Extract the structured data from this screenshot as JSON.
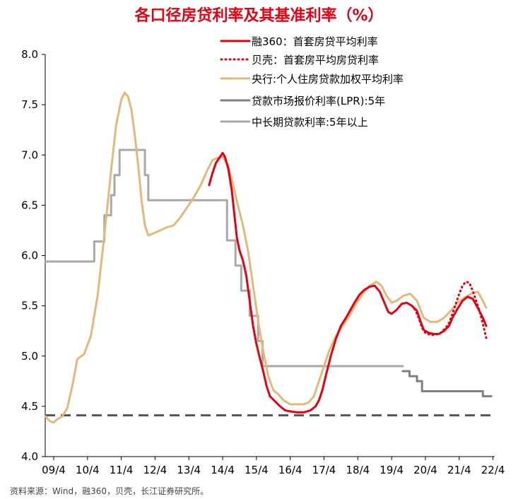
{
  "chart_data": {
    "type": "line",
    "title": "各口径房贷利率及其基准利率（%）",
    "source": "资料来源：Wind，融360，贝壳，长江证券研究所。",
    "ylim": [
      4.0,
      8.0
    ],
    "y_ticks": [
      "4.0",
      "4.5",
      "5.0",
      "5.5",
      "6.0",
      "6.5",
      "7.0",
      "7.5",
      "8.0"
    ],
    "x_range": [
      2009.25,
      2022.25
    ],
    "x_ticks": [
      {
        "label": "09/4",
        "x": 2009.25
      },
      {
        "label": "10/4",
        "x": 2010.25
      },
      {
        "label": "11/4",
        "x": 2011.25
      },
      {
        "label": "12/4",
        "x": 2012.25
      },
      {
        "label": "13/4",
        "x": 2013.25
      },
      {
        "label": "14/4",
        "x": 2014.25
      },
      {
        "label": "15/4",
        "x": 2015.25
      },
      {
        "label": "16/4",
        "x": 2016.25
      },
      {
        "label": "17/4",
        "x": 2017.25
      },
      {
        "label": "18/4",
        "x": 2018.25
      },
      {
        "label": "19/4",
        "x": 2019.25
      },
      {
        "label": "20/4",
        "x": 2020.25
      },
      {
        "label": "21/4",
        "x": 2021.25
      },
      {
        "label": "22/4",
        "x": 2022.25
      }
    ],
    "reference_line": {
      "value": 4.41,
      "color": "#555555",
      "style": "dashed"
    },
    "series": [
      {
        "name": "融360：首套房贷平均利率",
        "color": "#e60012",
        "style": "solid",
        "points": [
          [
            2013.85,
            6.7
          ],
          [
            2013.95,
            6.82
          ],
          [
            2014.05,
            6.92
          ],
          [
            2014.15,
            6.97
          ],
          [
            2014.25,
            7.02
          ],
          [
            2014.32,
            6.98
          ],
          [
            2014.42,
            6.86
          ],
          [
            2014.52,
            6.65
          ],
          [
            2014.6,
            6.4
          ],
          [
            2014.67,
            6.18
          ],
          [
            2014.75,
            6.05
          ],
          [
            2014.85,
            5.95
          ],
          [
            2014.95,
            5.8
          ],
          [
            2015.05,
            5.55
          ],
          [
            2015.15,
            5.3
          ],
          [
            2015.25,
            5.12
          ],
          [
            2015.35,
            4.98
          ],
          [
            2015.45,
            4.85
          ],
          [
            2015.55,
            4.7
          ],
          [
            2015.65,
            4.6
          ],
          [
            2015.8,
            4.55
          ],
          [
            2015.95,
            4.5
          ],
          [
            2016.1,
            4.46
          ],
          [
            2016.25,
            4.45
          ],
          [
            2016.45,
            4.44
          ],
          [
            2016.65,
            4.44
          ],
          [
            2016.85,
            4.46
          ],
          [
            2017.0,
            4.5
          ],
          [
            2017.1,
            4.56
          ],
          [
            2017.2,
            4.66
          ],
          [
            2017.3,
            4.8
          ],
          [
            2017.45,
            5.0
          ],
          [
            2017.6,
            5.17
          ],
          [
            2017.75,
            5.3
          ],
          [
            2017.9,
            5.38
          ],
          [
            2018.0,
            5.44
          ],
          [
            2018.15,
            5.53
          ],
          [
            2018.3,
            5.61
          ],
          [
            2018.45,
            5.66
          ],
          [
            2018.6,
            5.69
          ],
          [
            2018.75,
            5.7
          ],
          [
            2018.9,
            5.64
          ],
          [
            2019.05,
            5.52
          ],
          [
            2019.15,
            5.44
          ],
          [
            2019.25,
            5.42
          ],
          [
            2019.4,
            5.46
          ],
          [
            2019.55,
            5.52
          ],
          [
            2019.7,
            5.53
          ],
          [
            2019.85,
            5.5
          ],
          [
            2020.0,
            5.45
          ],
          [
            2020.1,
            5.35
          ],
          [
            2020.2,
            5.26
          ],
          [
            2020.35,
            5.23
          ],
          [
            2020.5,
            5.22
          ],
          [
            2020.65,
            5.22
          ],
          [
            2020.8,
            5.25
          ],
          [
            2020.95,
            5.3
          ],
          [
            2021.05,
            5.38
          ],
          [
            2021.2,
            5.47
          ],
          [
            2021.35,
            5.55
          ],
          [
            2021.5,
            5.59
          ],
          [
            2021.65,
            5.57
          ],
          [
            2021.8,
            5.48
          ],
          [
            2021.95,
            5.38
          ],
          [
            2022.05,
            5.3
          ]
        ]
      },
      {
        "name": "贝壳：首套房平均房贷利率",
        "color": "#e60012",
        "style": "dotted",
        "points": [
          [
            2019.85,
            5.5
          ],
          [
            2019.95,
            5.46
          ],
          [
            2020.05,
            5.38
          ],
          [
            2020.15,
            5.28
          ],
          [
            2020.25,
            5.23
          ],
          [
            2020.4,
            5.21
          ],
          [
            2020.55,
            5.21
          ],
          [
            2020.7,
            5.23
          ],
          [
            2020.85,
            5.28
          ],
          [
            2020.95,
            5.33
          ],
          [
            2021.05,
            5.42
          ],
          [
            2021.15,
            5.52
          ],
          [
            2021.25,
            5.62
          ],
          [
            2021.35,
            5.7
          ],
          [
            2021.45,
            5.74
          ],
          [
            2021.55,
            5.73
          ],
          [
            2021.65,
            5.65
          ],
          [
            2021.75,
            5.55
          ],
          [
            2021.85,
            5.45
          ],
          [
            2021.95,
            5.32
          ],
          [
            2022.05,
            5.18
          ]
        ]
      },
      {
        "name": "央行:个人住房贷款加权平均利率",
        "color": "#e3b97a",
        "style": "solid",
        "points": [
          [
            2009.0,
            4.4
          ],
          [
            2009.15,
            4.35
          ],
          [
            2009.25,
            4.34
          ],
          [
            2009.35,
            4.37
          ],
          [
            2009.5,
            4.4
          ],
          [
            2009.65,
            4.48
          ],
          [
            2009.8,
            4.7
          ],
          [
            2009.95,
            4.97
          ],
          [
            2010.15,
            5.02
          ],
          [
            2010.35,
            5.2
          ],
          [
            2010.55,
            5.6
          ],
          [
            2010.75,
            6.2
          ],
          [
            2010.95,
            6.85
          ],
          [
            2011.1,
            7.3
          ],
          [
            2011.25,
            7.55
          ],
          [
            2011.35,
            7.62
          ],
          [
            2011.45,
            7.58
          ],
          [
            2011.55,
            7.45
          ],
          [
            2011.65,
            7.2
          ],
          [
            2011.75,
            6.9
          ],
          [
            2011.85,
            6.55
          ],
          [
            2011.95,
            6.3
          ],
          [
            2012.05,
            6.2
          ],
          [
            2012.2,
            6.22
          ],
          [
            2012.4,
            6.25
          ],
          [
            2012.6,
            6.28
          ],
          [
            2012.8,
            6.3
          ],
          [
            2013.0,
            6.38
          ],
          [
            2013.2,
            6.48
          ],
          [
            2013.4,
            6.58
          ],
          [
            2013.6,
            6.7
          ],
          [
            2013.8,
            6.85
          ],
          [
            2013.95,
            6.95
          ],
          [
            2014.1,
            6.97
          ],
          [
            2014.25,
            6.98
          ],
          [
            2014.4,
            6.9
          ],
          [
            2014.55,
            6.72
          ],
          [
            2014.7,
            6.5
          ],
          [
            2014.85,
            6.3
          ],
          [
            2015.0,
            6.05
          ],
          [
            2015.15,
            5.7
          ],
          [
            2015.3,
            5.35
          ],
          [
            2015.45,
            5.05
          ],
          [
            2015.6,
            4.8
          ],
          [
            2015.75,
            4.66
          ],
          [
            2015.9,
            4.62
          ],
          [
            2016.05,
            4.56
          ],
          [
            2016.25,
            4.52
          ],
          [
            2016.45,
            4.52
          ],
          [
            2016.65,
            4.52
          ],
          [
            2016.8,
            4.54
          ],
          [
            2016.95,
            4.6
          ],
          [
            2017.1,
            4.75
          ],
          [
            2017.25,
            4.9
          ],
          [
            2017.4,
            5.05
          ],
          [
            2017.6,
            5.2
          ],
          [
            2017.8,
            5.3
          ],
          [
            2018.0,
            5.4
          ],
          [
            2018.2,
            5.52
          ],
          [
            2018.4,
            5.62
          ],
          [
            2018.6,
            5.7
          ],
          [
            2018.8,
            5.74
          ],
          [
            2018.95,
            5.7
          ],
          [
            2019.1,
            5.6
          ],
          [
            2019.25,
            5.53
          ],
          [
            2019.4,
            5.55
          ],
          [
            2019.6,
            5.6
          ],
          [
            2019.8,
            5.62
          ],
          [
            2020.0,
            5.55
          ],
          [
            2020.2,
            5.38
          ],
          [
            2020.4,
            5.34
          ],
          [
            2020.6,
            5.34
          ],
          [
            2020.8,
            5.38
          ],
          [
            2021.0,
            5.45
          ],
          [
            2021.2,
            5.53
          ],
          [
            2021.4,
            5.58
          ],
          [
            2021.6,
            5.62
          ],
          [
            2021.8,
            5.64
          ],
          [
            2021.95,
            5.55
          ],
          [
            2022.05,
            5.48
          ]
        ]
      },
      {
        "name": "贷款市场报价利率(LPR):5年",
        "color": "#808080",
        "style": "step",
        "points": [
          [
            2019.58,
            4.85
          ],
          [
            2019.78,
            4.85
          ],
          [
            2019.78,
            4.8
          ],
          [
            2020.0,
            4.8
          ],
          [
            2020.0,
            4.75
          ],
          [
            2020.15,
            4.75
          ],
          [
            2020.15,
            4.65
          ],
          [
            2021.95,
            4.65
          ],
          [
            2021.95,
            4.6
          ],
          [
            2022.2,
            4.6
          ]
        ]
      },
      {
        "name": "中长期贷款利率:5年以上",
        "color": "#a9a9a9",
        "style": "step",
        "points": [
          [
            2009.0,
            5.94
          ],
          [
            2010.45,
            5.94
          ],
          [
            2010.45,
            6.14
          ],
          [
            2010.75,
            6.14
          ],
          [
            2010.75,
            6.4
          ],
          [
            2010.95,
            6.4
          ],
          [
            2010.95,
            6.6
          ],
          [
            2011.05,
            6.6
          ],
          [
            2011.05,
            6.8
          ],
          [
            2011.2,
            6.8
          ],
          [
            2011.2,
            7.05
          ],
          [
            2011.95,
            7.05
          ],
          [
            2011.95,
            6.8
          ],
          [
            2012.05,
            6.8
          ],
          [
            2012.05,
            6.55
          ],
          [
            2014.38,
            6.55
          ],
          [
            2014.38,
            6.15
          ],
          [
            2014.63,
            6.15
          ],
          [
            2014.63,
            5.9
          ],
          [
            2014.8,
            5.9
          ],
          [
            2014.8,
            5.65
          ],
          [
            2015.05,
            5.65
          ],
          [
            2015.05,
            5.4
          ],
          [
            2015.3,
            5.4
          ],
          [
            2015.3,
            5.15
          ],
          [
            2015.43,
            5.15
          ],
          [
            2015.43,
            4.9
          ],
          [
            2019.58,
            4.9
          ]
        ]
      }
    ]
  }
}
